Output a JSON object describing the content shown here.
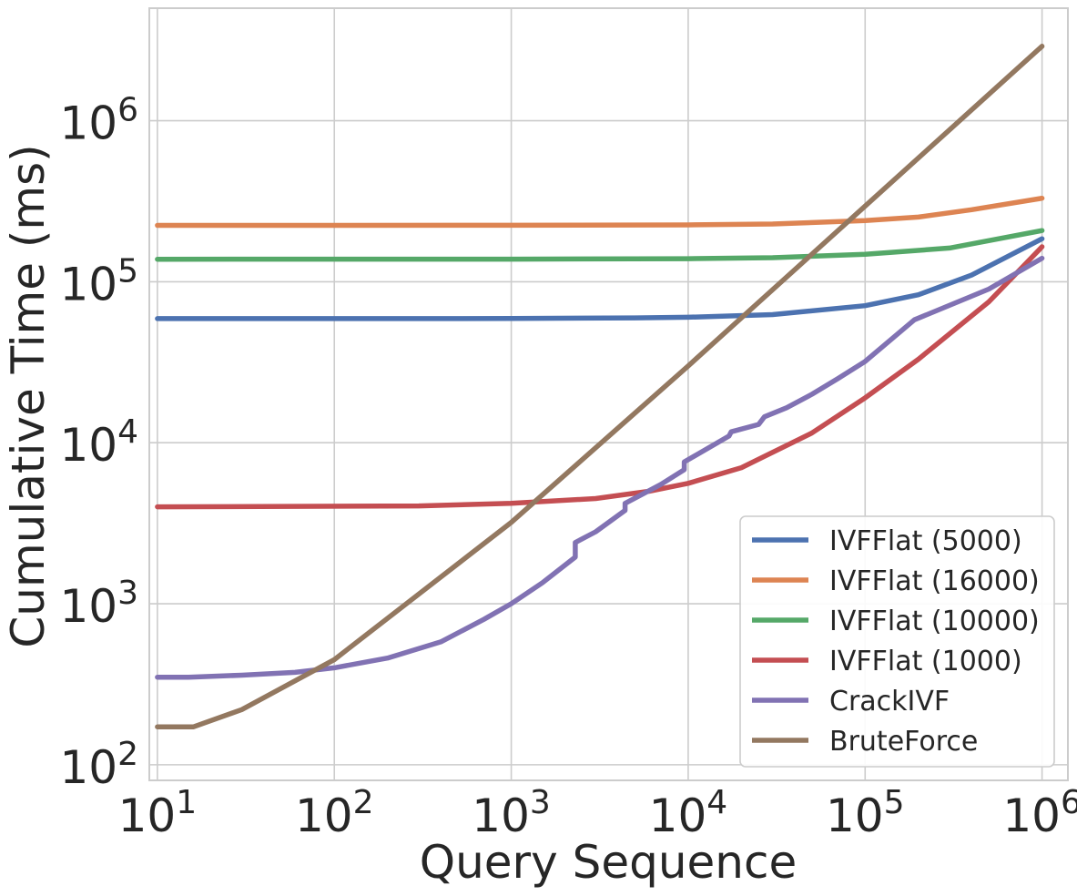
{
  "chart_data": {
    "type": "line",
    "title": "",
    "xlabel": "Query Sequence",
    "ylabel": "Cumulative Time (ms)",
    "xscale": "log",
    "yscale": "log",
    "xlim": [
      9,
      1400000
    ],
    "ylim": [
      80,
      5000000
    ],
    "grid": true,
    "legend_position": "lower-right",
    "x_ticks": [
      {
        "value": 10,
        "base": "10",
        "exp": "1"
      },
      {
        "value": 100,
        "base": "10",
        "exp": "2"
      },
      {
        "value": 1000,
        "base": "10",
        "exp": "3"
      },
      {
        "value": 10000,
        "base": "10",
        "exp": "4"
      },
      {
        "value": 100000,
        "base": "10",
        "exp": "5"
      },
      {
        "value": 1000000,
        "base": "10",
        "exp": "6"
      }
    ],
    "y_ticks": [
      {
        "value": 100,
        "base": "10",
        "exp": "2"
      },
      {
        "value": 1000,
        "base": "10",
        "exp": "3"
      },
      {
        "value": 10000,
        "base": "10",
        "exp": "4"
      },
      {
        "value": 100000,
        "base": "10",
        "exp": "5"
      },
      {
        "value": 1000000,
        "base": "10",
        "exp": "6"
      }
    ],
    "series": [
      {
        "name": "IVFFlat (5000)",
        "color": "#4c72b0",
        "points": [
          [
            10,
            59000
          ],
          [
            1000,
            59100
          ],
          [
            5000,
            59600
          ],
          [
            10000,
            60200
          ],
          [
            30000,
            62500
          ],
          [
            100000,
            71000
          ],
          [
            200000,
            83000
          ],
          [
            400000,
            110000
          ],
          [
            1000000,
            185000
          ]
        ]
      },
      {
        "name": "IVFFlat (16000)",
        "color": "#dd8452",
        "points": [
          [
            10,
            224000
          ],
          [
            1000,
            224200
          ],
          [
            10000,
            225500
          ],
          [
            30000,
            228500
          ],
          [
            100000,
            240000
          ],
          [
            200000,
            252000
          ],
          [
            400000,
            280000
          ],
          [
            1000000,
            330000
          ]
        ]
      },
      {
        "name": "IVFFlat (10000)",
        "color": "#55a868",
        "points": [
          [
            10,
            138000
          ],
          [
            1000,
            138100
          ],
          [
            10000,
            139000
          ],
          [
            30000,
            141000
          ],
          [
            100000,
            148000
          ],
          [
            300000,
            162000
          ],
          [
            1000000,
            208000
          ]
        ]
      },
      {
        "name": "IVFFlat (1000)",
        "color": "#c44e52",
        "points": [
          [
            10,
            4000
          ],
          [
            300,
            4050
          ],
          [
            1000,
            4200
          ],
          [
            3000,
            4500
          ],
          [
            6000,
            5000
          ],
          [
            10000,
            5600
          ],
          [
            20000,
            7000
          ],
          [
            50000,
            11500
          ],
          [
            100000,
            19000
          ],
          [
            200000,
            33000
          ],
          [
            500000,
            75000
          ],
          [
            1000000,
            165000
          ]
        ]
      },
      {
        "name": "CrackIVF",
        "color": "#8172b3",
        "points": [
          [
            10,
            350
          ],
          [
            15,
            350
          ],
          [
            30,
            360
          ],
          [
            60,
            375
          ],
          [
            100,
            400
          ],
          [
            200,
            460
          ],
          [
            400,
            580
          ],
          [
            700,
            800
          ],
          [
            1000,
            1000
          ],
          [
            1500,
            1350
          ],
          [
            2300,
            1950
          ],
          [
            2300,
            2400
          ],
          [
            3000,
            2800
          ],
          [
            4400,
            3800
          ],
          [
            4400,
            4200
          ],
          [
            7000,
            5500
          ],
          [
            9500,
            6800
          ],
          [
            9500,
            7600
          ],
          [
            17000,
            11000
          ],
          [
            17500,
            11700
          ],
          [
            25000,
            13000
          ],
          [
            27000,
            14500
          ],
          [
            36000,
            16500
          ],
          [
            50000,
            20000
          ],
          [
            70000,
            25000
          ],
          [
            100000,
            32000
          ],
          [
            190000,
            58000
          ],
          [
            500000,
            90000
          ],
          [
            1000000,
            140000
          ]
        ]
      },
      {
        "name": "BruteForce",
        "color": "#937860",
        "points": [
          [
            10,
            172
          ],
          [
            16,
            172
          ],
          [
            30,
            220
          ],
          [
            100,
            450
          ],
          [
            1000,
            3200
          ],
          [
            10000,
            30000
          ],
          [
            100000,
            295000
          ],
          [
            1000000,
            2900000
          ]
        ]
      }
    ],
    "legend_order": [
      "IVFFlat (5000)",
      "IVFFlat (16000)",
      "IVFFlat (10000)",
      "IVFFlat (1000)",
      "CrackIVF",
      "BruteForce"
    ]
  },
  "colors": {
    "background": "#ffffff",
    "grid": "#cccccc",
    "text": "#262626"
  }
}
